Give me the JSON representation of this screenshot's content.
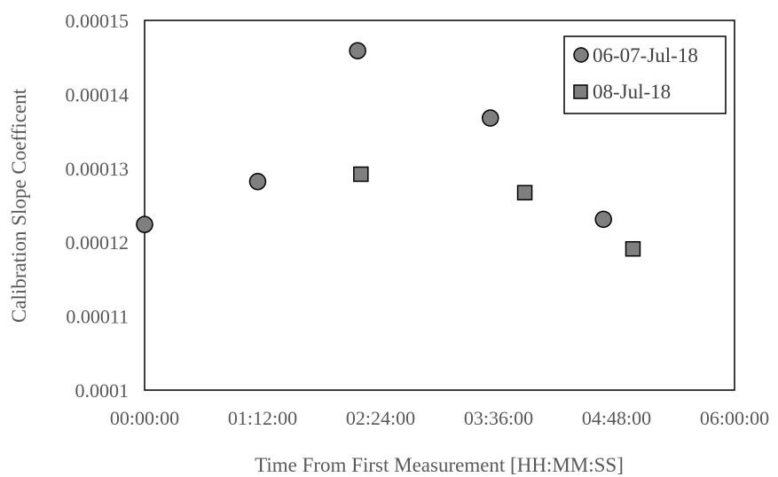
{
  "chart_data": {
    "type": "scatter",
    "title": "",
    "xlabel": "Time From First Measurement [HH:MM:SS]",
    "ylabel": "Calibration Slope Coefficent",
    "x_unit": "HH:MM:SS",
    "xlim": [
      "00:00:00",
      "06:00:00"
    ],
    "ylim": [
      0.0001,
      0.00015
    ],
    "x_ticks": [
      "00:00:00",
      "01:12:00",
      "02:24:00",
      "03:36:00",
      "04:48:00",
      "06:00:00"
    ],
    "y_ticks": [
      "0.0001",
      "0.00011",
      "0.00012",
      "0.00013",
      "0.00014",
      "0.00015"
    ],
    "grid": false,
    "legend": "top-right",
    "series": [
      {
        "name": "06-07-Jul-18",
        "marker": "circle",
        "color": "#7f7f7f",
        "x": [
          "00:00:00",
          "01:09:00",
          "02:10:00",
          "03:31:00",
          "04:40:00"
        ],
        "y": [
          0.0001224,
          0.0001282,
          0.0001459,
          0.0001368,
          0.0001231
        ]
      },
      {
        "name": "08-Jul-18",
        "marker": "square",
        "color": "#7f7f7f",
        "x": [
          "02:12:00",
          "03:52:00",
          "04:58:00"
        ],
        "y": [
          0.0001292,
          0.0001267,
          0.0001191
        ]
      }
    ]
  }
}
